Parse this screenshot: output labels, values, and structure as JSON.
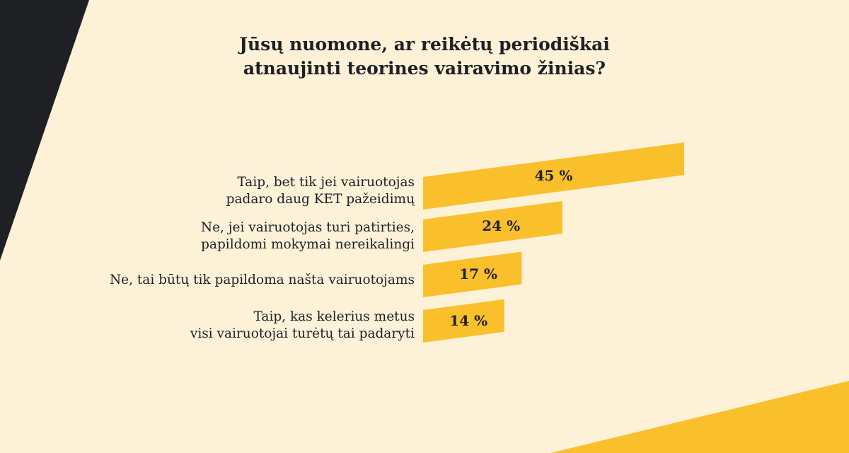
{
  "title_lines": [
    "Jūsų nuomone, ar reikėtų periodiškai",
    "atnaujinti teorines vairavimo žinias?"
  ],
  "colors": {
    "background": "#fdf1d8",
    "bar": "#f9c02c",
    "dark": "#1f2024",
    "text": "#1f2024"
  },
  "chart_data": {
    "type": "bar",
    "orientation": "horizontal",
    "title": "Jūsų nuomone, ar reikėtų periodiškai atnaujinti teorines vairavimo žinias?",
    "unit": "%",
    "categories": [
      [
        "Taip, bet tik jei vairuotojas",
        "padaro daug KET pažeidimų"
      ],
      [
        "Ne, jei vairuotojas turi patirties,",
        "papildomi mokymai nereikalingi"
      ],
      [
        "Ne, tai būtų tik papildoma našta vairuotojams"
      ],
      [
        "Taip, kas kelerius metus",
        "visi vairuotojai turėtų tai padaryti"
      ]
    ],
    "values": [
      45,
      24,
      17,
      14
    ],
    "data_labels": [
      "45 %",
      "24 %",
      "17 %",
      "14 %"
    ],
    "xlim": [
      0,
      45
    ]
  }
}
